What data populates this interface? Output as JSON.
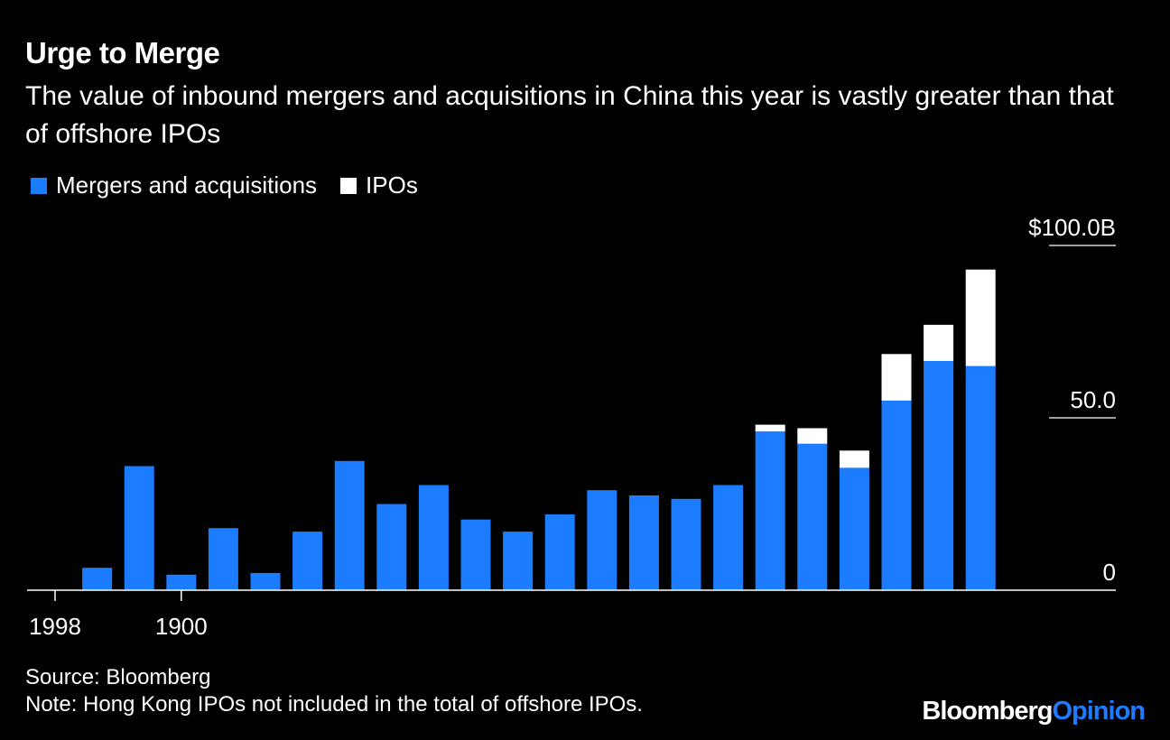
{
  "header": {
    "title": "Urge to Merge",
    "subtitle": "The value of inbound mergers and acquisitions in China this year is vastly greater than that of offshore IPOs"
  },
  "legend": {
    "items": [
      {
        "label": "Mergers and acquisitions",
        "color": "#1b7cff"
      },
      {
        "label": "IPOs",
        "color": "#ffffff"
      }
    ]
  },
  "footer": {
    "source": "Source: Bloomberg",
    "note": "Note: Hong Kong IPOs not included in the total of offshore IPOs."
  },
  "brand": {
    "part1": "Bloomberg",
    "part2": "Opinion"
  },
  "chart_data": {
    "type": "bar",
    "stacked": true,
    "title": "Urge to Merge",
    "subtitle": "The value of inbound mergers and acquisitions in China this year is vastly greater than that of offshore IPOs",
    "series": [
      {
        "name": "Mergers and acquisitions",
        "color": "#1b7cff",
        "values": [
          0,
          6.5,
          36,
          4.5,
          18,
          5,
          17,
          37.5,
          25,
          30.5,
          20.5,
          17,
          22,
          29,
          27.5,
          26.5,
          30.5,
          46,
          42.5,
          35.5,
          55,
          66.5,
          65
        ]
      },
      {
        "name": "IPOs",
        "color": "#ffffff",
        "values": [
          0,
          0,
          0,
          0,
          0,
          0,
          0,
          0,
          0,
          0,
          0,
          0,
          0,
          0,
          0,
          0,
          0,
          2,
          4.5,
          5,
          13.5,
          10.5,
          28
        ]
      }
    ],
    "x_tick_labels": [
      "1998",
      "1900"
    ],
    "y_ticks": [
      {
        "value": 100,
        "label": "$100.0B"
      },
      {
        "value": 50,
        "label": "50.0"
      },
      {
        "value": 0,
        "label": "0"
      }
    ],
    "ylim": [
      0,
      100
    ],
    "y_axis_side": "right",
    "grid": false
  }
}
